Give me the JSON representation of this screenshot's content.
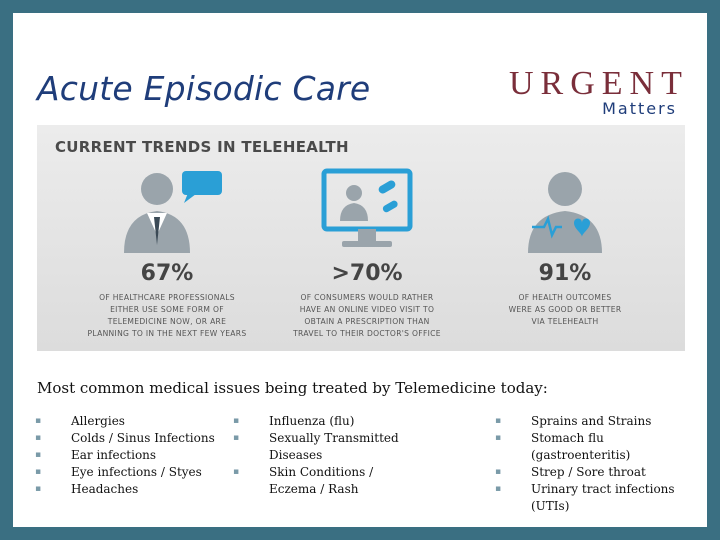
{
  "title": "Acute Episodic Care",
  "logo": {
    "main": "URGENT",
    "sub": "Matters"
  },
  "infographic": {
    "heading": "CURRENT TRENDS IN TELEHEALTH",
    "stats": [
      {
        "icon": "doctor-chat-icon",
        "value": "67%",
        "desc": [
          "OF HEALTHCARE PROFESSIONALS",
          "EITHER USE SOME FORM OF",
          "TELEMEDICINE NOW, OR ARE",
          "PLANNING TO IN THE NEXT FEW YEARS"
        ]
      },
      {
        "icon": "computer-video-icon",
        "value": ">70%",
        "desc": [
          "OF CONSUMERS WOULD RATHER",
          "HAVE AN ONLINE VIDEO VISIT TO",
          "OBTAIN A PRESCRIPTION THAN",
          "TRAVEL TO THEIR DOCTOR'S OFFICE"
        ]
      },
      {
        "icon": "patient-heart-icon",
        "value": "91%",
        "desc": [
          "OF HEALTH OUTCOMES",
          "WERE AS GOOD OR BETTER",
          "VIA TELEHEALTH"
        ]
      }
    ]
  },
  "subtitle": "Most common medical issues being treated by Telemedicine today:",
  "columns": [
    [
      "Allergies",
      "Colds / Sinus Infections",
      "Ear infections",
      "Eye infections / Styes",
      "Headaches"
    ],
    [
      "Influenza (flu)",
      "Sexually Transmitted Diseases",
      "Skin Conditions / Eczema / Rash"
    ],
    [
      "Sprains and Strains",
      "Stomach flu (gastroenteritis)",
      "Strep / Sore throat",
      "Urinary tract infections (UTIs)"
    ]
  ],
  "colors": {
    "border": "#3a6f82",
    "title": "#1f3d7a",
    "logo": "#7a2e3a",
    "icon_gray": "#9aa4ab",
    "icon_blue": "#2a9fd6"
  }
}
